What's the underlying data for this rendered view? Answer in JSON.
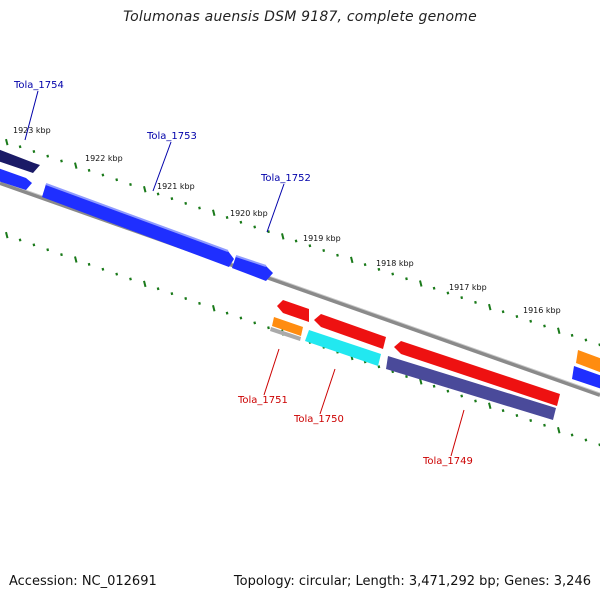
{
  "title": "Tolumonas auensis DSM 9187, complete genome",
  "footer": {
    "accession": "Accession: NC_012691",
    "summary": "Topology: circular; Length: 3,471,292 bp; Genes: 3,246"
  },
  "colors": {
    "forward_label": "#0000aa",
    "reverse_label": "#cc0000",
    "tick": "#1a7a1a",
    "backbone": "#888888"
  },
  "scale_labels": [
    "1923 kbp",
    "1922 kbp",
    "1921 kbp",
    "1920 kbp",
    "1919 kbp",
    "1918 kbp",
    "1917 kbp",
    "1916 kbp"
  ],
  "genes": [
    {
      "name": "Tola_1754",
      "strand": "forward",
      "color": "#1a1a66"
    },
    {
      "name": "Tola_1753",
      "strand": "forward",
      "color": "#1f2fff"
    },
    {
      "name": "Tola_1752",
      "strand": "forward",
      "color": "#1f2fff"
    },
    {
      "name": "Tola_1751",
      "strand": "reverse",
      "color": "#ee1111"
    },
    {
      "name": "Tola_1750",
      "strand": "reverse",
      "color": "#22e8f0"
    },
    {
      "name": "Tola_1749",
      "strand": "reverse",
      "color": "#ee1111"
    }
  ]
}
